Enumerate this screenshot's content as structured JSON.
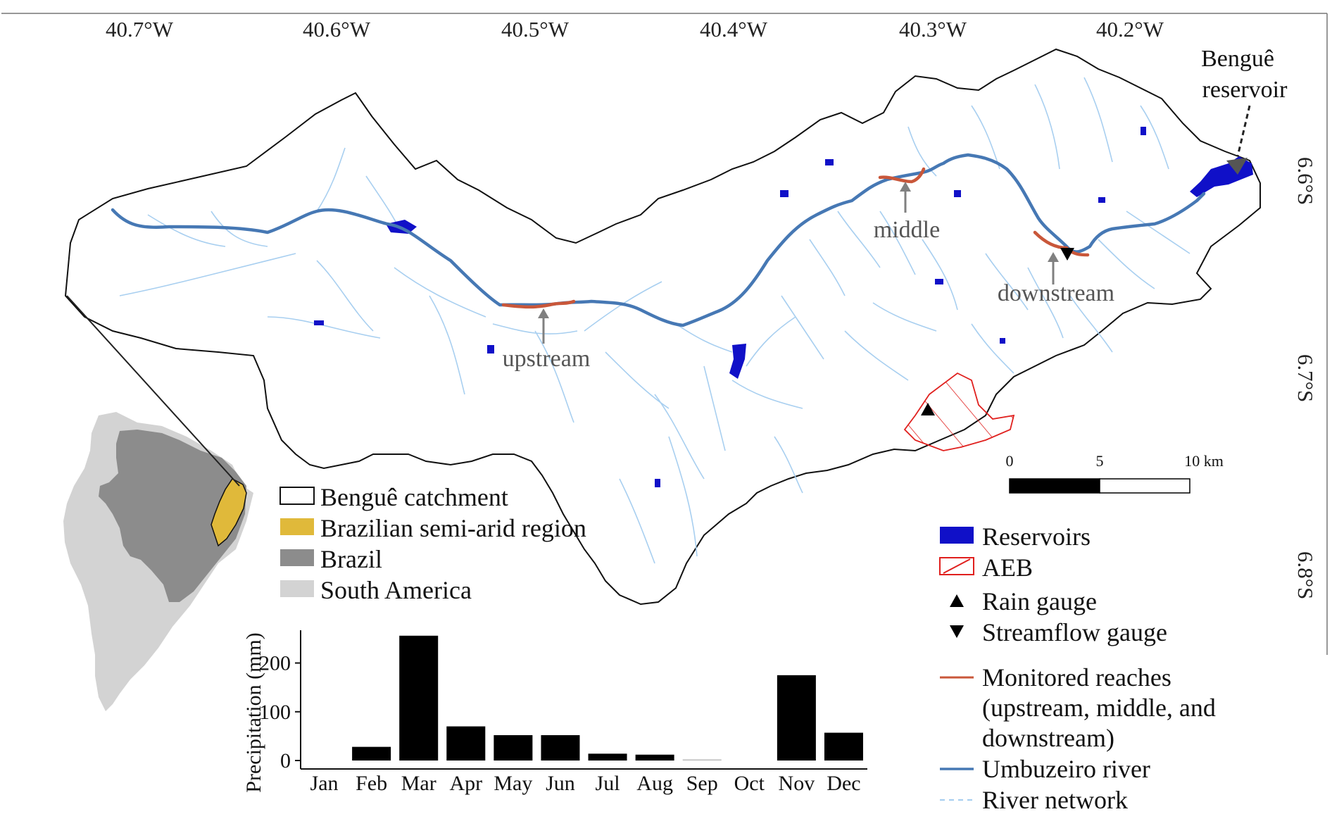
{
  "map": {
    "longitude_labels": [
      "40.7°W",
      "40.6°W",
      "40.5°W",
      "40.4°W",
      "40.3°W",
      "40.2°W"
    ],
    "latitude_labels": [
      "6.6°S",
      "6.7°S",
      "6.8°S"
    ],
    "reach_labels": {
      "upstream": "upstream",
      "middle": "middle",
      "downstream": "downstream"
    },
    "reservoir_label": [
      "Benguê",
      "reservoir"
    ],
    "scale_bar": {
      "labels": [
        "0",
        "5",
        "10 km"
      ]
    },
    "colors": {
      "catchment_outline": "#111111",
      "reservoirs": "#1010c8",
      "aeb": "#e0201e",
      "monitored_reaches": "#c9573a",
      "umbuzeiro_river": "#4678b4",
      "river_network": "#a8cff0",
      "semi_arid": "#e0b93a",
      "brazil": "#8c8c8c",
      "south_america": "#d3d3d3"
    }
  },
  "legend_left": {
    "items": [
      {
        "label": "Benguê catchment",
        "swatch": "outline"
      },
      {
        "label": "Brazilian semi-arid region",
        "swatch": "#e0b93a"
      },
      {
        "label": "Brazil",
        "swatch": "#8c8c8c"
      },
      {
        "label": "South America",
        "swatch": "#d3d3d3"
      }
    ]
  },
  "legend_right": {
    "reservoirs": "Reservoirs",
    "aeb": "AEB",
    "rain_gauge": "Rain gauge",
    "streamflow_gauge": "Streamflow gauge",
    "monitored_reaches": [
      "Monitored reaches",
      "(upstream, middle, and",
      "downstream)"
    ],
    "umbuzeiro_river": "Umbuzeiro river",
    "river_network": "River network"
  },
  "chart_data": {
    "type": "bar",
    "categories": [
      "Jan",
      "Feb",
      "Mar",
      "Apr",
      "May",
      "Jun",
      "Jul",
      "Aug",
      "Sep",
      "Oct",
      "Nov",
      "Dec"
    ],
    "values": [
      0,
      28,
      256,
      70,
      52,
      52,
      14,
      12,
      2,
      0,
      175,
      57
    ],
    "ylabel": "Precipitation (mm)",
    "yticks": [
      0,
      100,
      200
    ],
    "ylim": [
      0,
      270
    ],
    "bar_color": "#000000",
    "grid": false
  }
}
